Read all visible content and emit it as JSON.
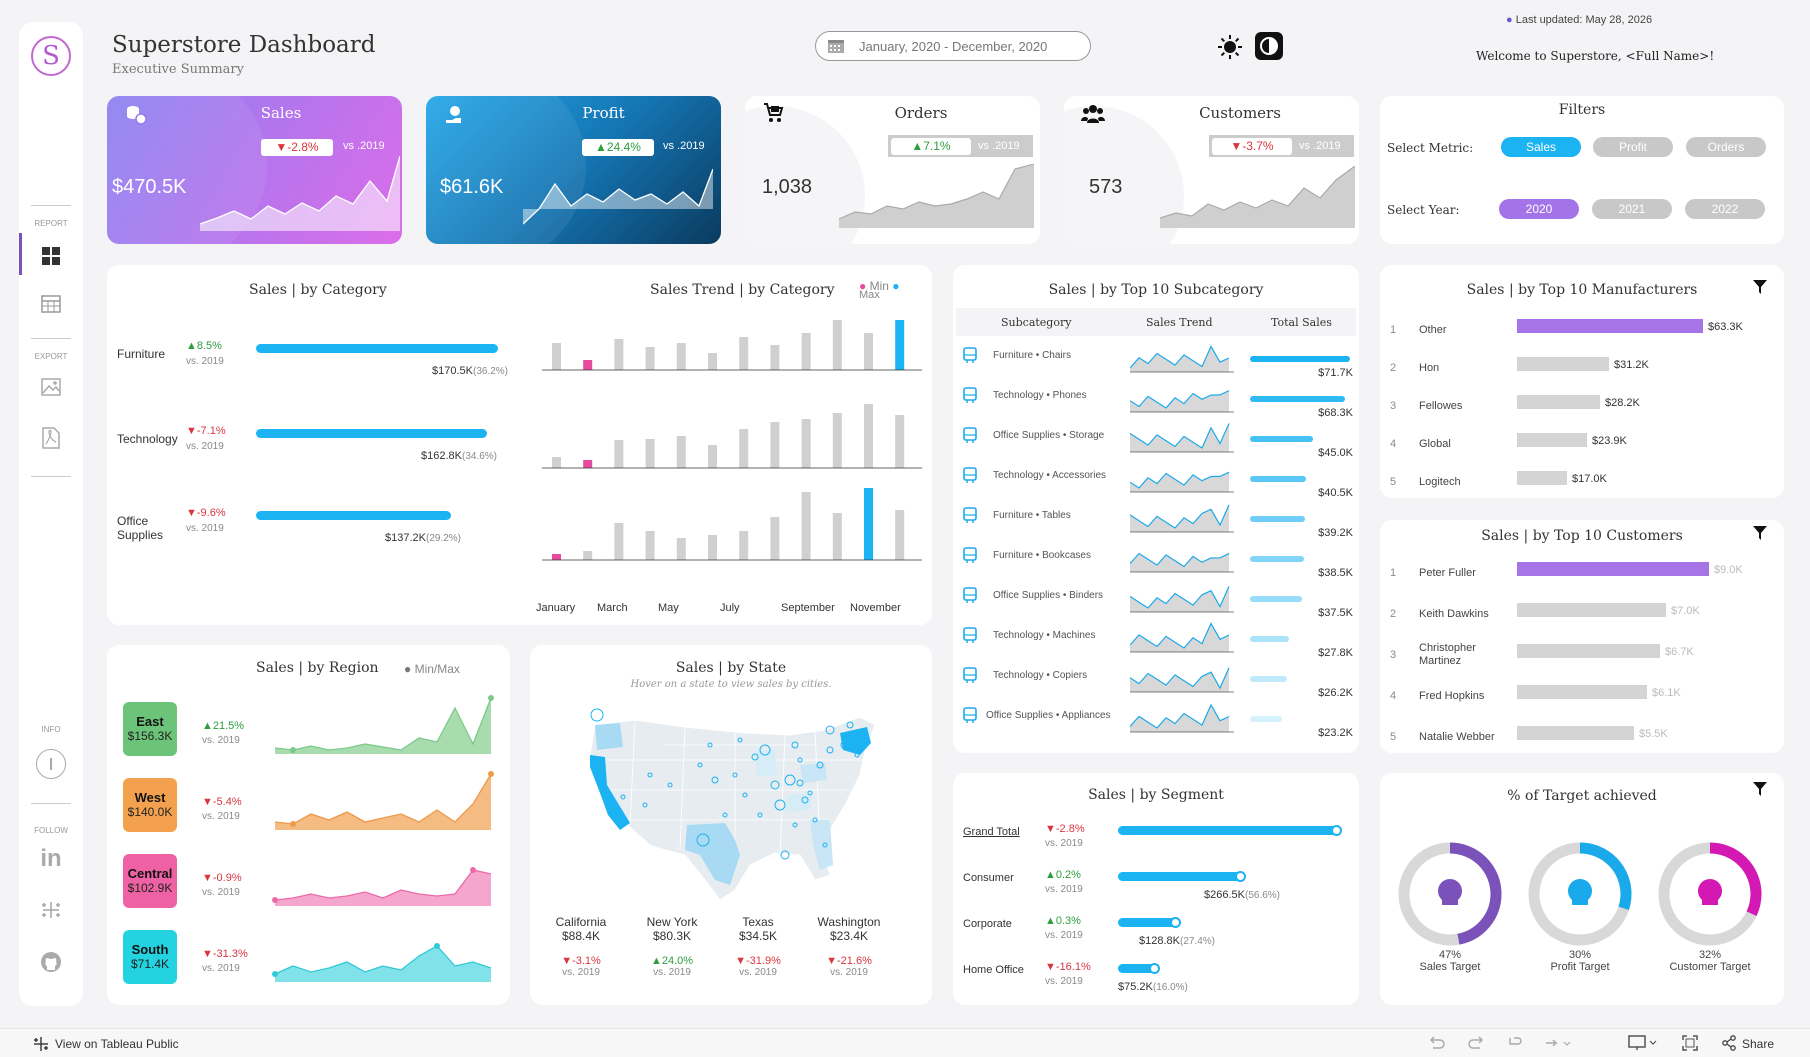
{
  "header": {
    "title": "Superstore Dashboard",
    "subtitle": "Executive Summary",
    "date_range": "January, 2020 - December, 2020",
    "last_updated": "Last updated: May 28, 2026",
    "welcome": "Welcome to Superstore, <Full Name>!"
  },
  "sidebar": {
    "logo_letter": "S",
    "report_label": "REPORT",
    "export_label": "EXPORT",
    "info_label": "INFO",
    "follow_label": "FOLLOW"
  },
  "kpis": {
    "sales": {
      "label": "Sales",
      "value": "$470.5K",
      "delta": "▼-2.8%",
      "vs": "vs .2019"
    },
    "profit": {
      "label": "Profit",
      "value": "$61.6K",
      "delta": "▲24.4%",
      "vs": "vs .2019"
    },
    "orders": {
      "label": "Orders",
      "value": "1,038",
      "delta": "▲7.1%",
      "vs": "vs .2019"
    },
    "customers": {
      "label": "Customers",
      "value": "573",
      "delta": "▼-3.7%",
      "vs": "vs .2019"
    }
  },
  "filters": {
    "title": "Filters",
    "metric_label": "Select Metric:",
    "metrics": [
      "Sales",
      "Profit",
      "Orders"
    ],
    "selected_metric": "Sales",
    "year_label": "Select Year:",
    "years": [
      "2020",
      "2021",
      "2022"
    ],
    "selected_year": "2020"
  },
  "category": {
    "title": "Sales | by Category",
    "trend_title": "Sales Trend | by Category",
    "legend_min": "Min",
    "legend_max": "Max",
    "month_labels": [
      "January",
      "March",
      "May",
      "July",
      "September",
      "November"
    ],
    "rows": [
      {
        "name": "Furniture",
        "delta": "▲8.5%",
        "dir": "up",
        "vs": "vs. 2019",
        "value": "$170.5K",
        "pct": "(36.2%)",
        "amount": 170.5,
        "monthly": [
          0.35,
          0.13,
          0.4,
          0.3,
          0.35,
          0.22,
          0.42,
          0.32,
          0.48,
          0.82,
          0.48,
          1.0,
          0.76
        ]
      },
      {
        "name": "Technology",
        "delta": "▼-7.1%",
        "dir": "down",
        "vs": "vs. 2019",
        "value": "$162.8K",
        "pct": "(34.6%)",
        "amount": 162.8,
        "monthly": [
          0.12,
          0.09,
          0.3,
          0.32,
          0.35,
          0.25,
          0.42,
          0.5,
          0.53,
          0.6,
          0.7,
          0.58,
          1.0
        ]
      },
      {
        "name": "Office Supplies",
        "delta": "▼-9.6%",
        "dir": "down",
        "vs": "vs. 2019",
        "value": "$137.2K",
        "pct": "(29.2%)",
        "amount": 137.2,
        "monthly": [
          0.08,
          0.13,
          0.52,
          0.4,
          0.3,
          0.35,
          0.4,
          0.6,
          0.95,
          0.65,
          1.0,
          0.7,
          0.68
        ]
      }
    ]
  },
  "subcategory": {
    "title": "Sales | by Top 10 Subcategory",
    "col_sub": "Subcategory",
    "col_trend": "Sales Trend",
    "col_total": "Total Sales",
    "rows": [
      {
        "name": "Furniture • Chairs",
        "value": "$71.7K",
        "amount": 71.7
      },
      {
        "name": "Technology • Phones",
        "value": "$68.3K",
        "amount": 68.3
      },
      {
        "name": "Office Supplies • Storage",
        "value": "$45.0K",
        "amount": 45.0
      },
      {
        "name": "Technology • Accessories",
        "value": "$40.5K",
        "amount": 40.5
      },
      {
        "name": "Furniture • Tables",
        "value": "$39.2K",
        "amount": 39.2
      },
      {
        "name": "Furniture • Bookcases",
        "value": "$38.5K",
        "amount": 38.5
      },
      {
        "name": "Office Supplies • Binders",
        "value": "$37.5K",
        "amount": 37.5
      },
      {
        "name": "Technology • Machines",
        "value": "$27.8K",
        "amount": 27.8
      },
      {
        "name": "Technology • Copiers",
        "value": "$26.2K",
        "amount": 26.2
      },
      {
        "name": "Office Supplies • Appliances",
        "value": "$23.2K",
        "amount": 23.2
      }
    ]
  },
  "manufacturers": {
    "title": "Sales | by Top 10 Manufacturers",
    "rows": [
      {
        "rank": "1",
        "name": "Other",
        "value": "$63.3K",
        "amount": 63.3
      },
      {
        "rank": "2",
        "name": "Hon",
        "value": "$31.2K",
        "amount": 31.2
      },
      {
        "rank": "3",
        "name": "Fellowes",
        "value": "$28.2K",
        "amount": 28.2
      },
      {
        "rank": "4",
        "name": "Global",
        "value": "$23.9K",
        "amount": 23.9
      },
      {
        "rank": "5",
        "name": "Logitech",
        "value": "$17.0K",
        "amount": 17.0
      }
    ]
  },
  "customers_top": {
    "title": "Sales | by Top 10 Customers",
    "rows": [
      {
        "rank": "1",
        "name": "Peter Fuller",
        "value": "$9.0K",
        "amount": 9.0
      },
      {
        "rank": "2",
        "name": "Keith Dawkins",
        "value": "$7.0K",
        "amount": 7.0
      },
      {
        "rank": "3",
        "name": "Christopher Martinez",
        "value": "$6.7K",
        "amount": 6.7
      },
      {
        "rank": "4",
        "name": "Fred Hopkins",
        "value": "$6.1K",
        "amount": 6.1
      },
      {
        "rank": "5",
        "name": "Natalie Webber",
        "value": "$5.5K",
        "amount": 5.5
      }
    ]
  },
  "region": {
    "title": "Sales | by Region",
    "legend": "Min/Max",
    "rows": [
      {
        "name": "East",
        "value": "$156.3K",
        "delta": "▲21.5%",
        "dir": "up",
        "vs": "vs. 2019",
        "color": "#6cc47a",
        "fill": "#a8dcae",
        "line": "#7cc98a"
      },
      {
        "name": "West",
        "value": "$140.0K",
        "delta": "▼-5.4%",
        "dir": "down",
        "vs": "vs. 2019",
        "color": "#f3a14e",
        "fill": "#f4bb82",
        "line": "#ee9a48"
      },
      {
        "name": "Central",
        "value": "$102.9K",
        "delta": "▼-0.9%",
        "dir": "down",
        "vs": "vs. 2019",
        "color": "#ee62a3",
        "fill": "#f5a6cc",
        "line": "#ec6aa8"
      },
      {
        "name": "South",
        "value": "$71.4K",
        "delta": "▼-31.3%",
        "dir": "down",
        "vs": "vs. 2019",
        "color": "#23d3e0",
        "fill": "#82e2ea",
        "line": "#33c9d6"
      }
    ]
  },
  "state": {
    "title": "Sales | by State",
    "hint": "Hover on a state to view sales by cities.",
    "rows": [
      {
        "name": "California",
        "value": "$88.4K",
        "delta": "▼-3.1%",
        "dir": "down",
        "vs": "vs. 2019"
      },
      {
        "name": "New York",
        "value": "$80.3K",
        "delta": "▲24.0%",
        "dir": "up",
        "vs": "vs. 2019"
      },
      {
        "name": "Texas",
        "value": "$34.5K",
        "delta": "▼-31.9%",
        "dir": "down",
        "vs": "vs. 2019"
      },
      {
        "name": "Washington",
        "value": "$23.4K",
        "delta": "▼-21.6%",
        "dir": "down",
        "vs": "vs. 2019"
      }
    ]
  },
  "segment": {
    "title": "Sales | by Segment",
    "rows": [
      {
        "name": "Grand Total",
        "delta": "▼-2.8%",
        "dir": "down",
        "vs": "vs. 2019",
        "value": "$470.5K",
        "pct": "(100.0%)",
        "fraction": 1.0
      },
      {
        "name": "Consumer",
        "delta": "▲0.2%",
        "dir": "up",
        "vs": "vs. 2019",
        "value": "$266.5K",
        "pct": "(56.6%)",
        "fraction": 0.566
      },
      {
        "name": "Corporate",
        "delta": "▲0.3%",
        "dir": "up",
        "vs": "vs. 2019",
        "value": "$128.8K",
        "pct": "(27.4%)",
        "fraction": 0.274
      },
      {
        "name": "Home Office",
        "delta": "▼-16.1%",
        "dir": "down",
        "vs": "vs. 2019",
        "value": "$75.2K",
        "pct": "(16.0%)",
        "fraction": 0.16
      }
    ]
  },
  "targets": {
    "title": "% of Target achieved",
    "items": [
      {
        "pct": "47%",
        "label": "Sales Target",
        "fraction": 0.47,
        "color": "#7b52b9"
      },
      {
        "pct": "30%",
        "label": "Profit Target",
        "fraction": 0.3,
        "color": "#1aa9ea"
      },
      {
        "pct": "32%",
        "label": "Customer Target",
        "fraction": 0.32,
        "color": "#d418b4"
      }
    ]
  },
  "footer": {
    "view_on": "View on Tableau Public",
    "share": "Share"
  }
}
